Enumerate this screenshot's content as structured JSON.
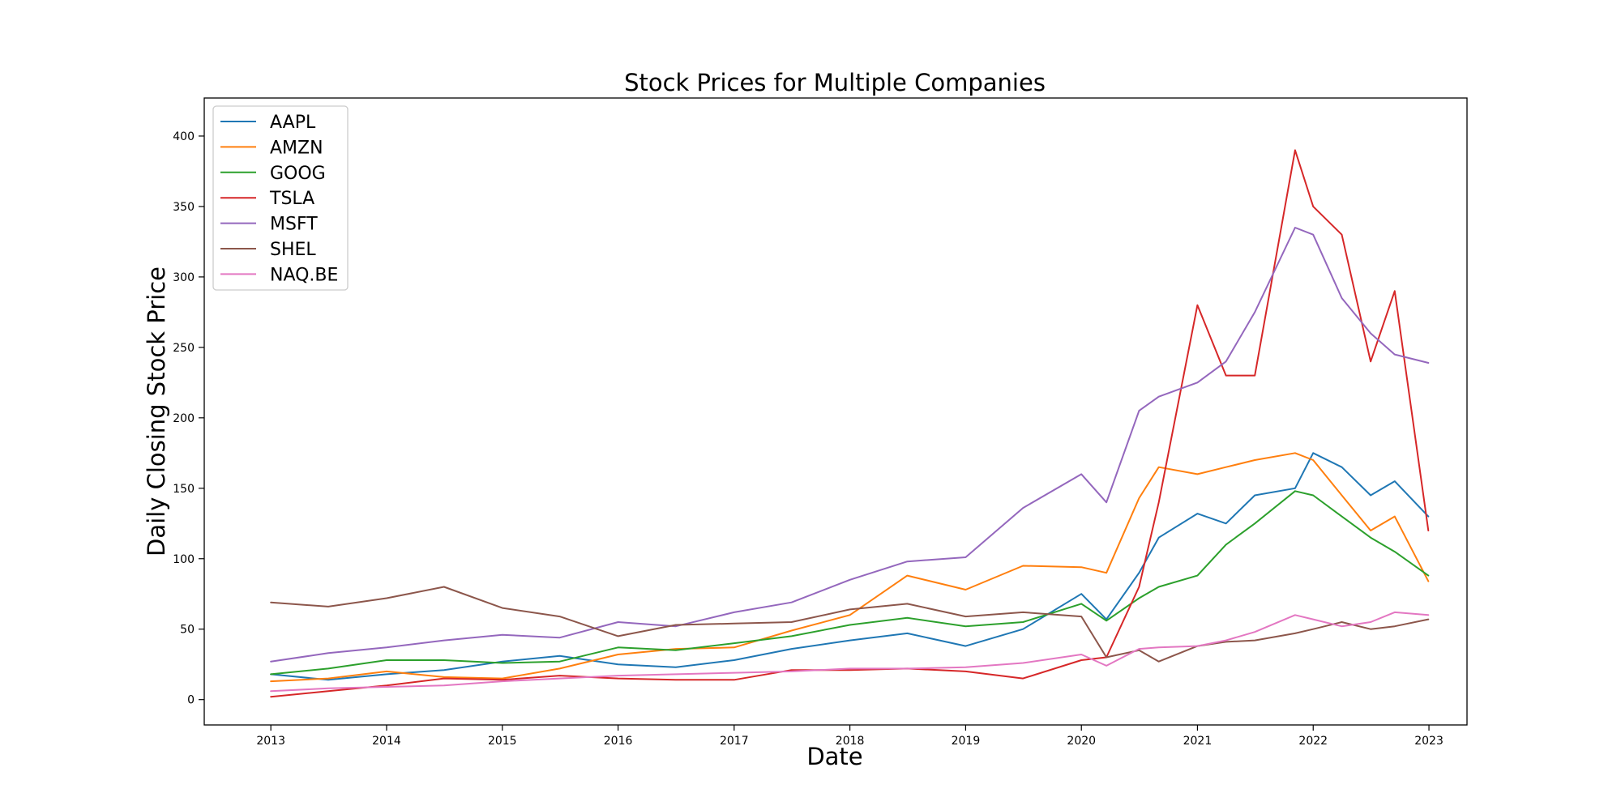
{
  "chart_data": {
    "type": "line",
    "title": "Stock Prices for Multiple Companies",
    "xlabel": "Date",
    "ylabel": "Daily Closing Stock Price",
    "xlim": [
      "2012-06-05",
      "2023-05-01"
    ],
    "ylim": [
      -18,
      427
    ],
    "x_ticks": [
      "2013",
      "2014",
      "2015",
      "2016",
      "2017",
      "2018",
      "2019",
      "2020",
      "2021",
      "2022",
      "2023"
    ],
    "y_ticks": [
      0,
      50,
      100,
      150,
      200,
      250,
      300,
      350,
      400
    ],
    "legend_position": "upper-left",
    "grid": false,
    "x": [
      "2013-01-01",
      "2013-07-01",
      "2014-01-01",
      "2014-07-01",
      "2015-01-01",
      "2015-07-01",
      "2016-01-01",
      "2016-07-01",
      "2017-01-01",
      "2017-07-01",
      "2018-01-01",
      "2018-07-01",
      "2019-01-01",
      "2019-07-01",
      "2020-01-01",
      "2020-03-20",
      "2020-07-01",
      "2020-09-01",
      "2021-01-01",
      "2021-04-01",
      "2021-07-01",
      "2021-11-05",
      "2022-01-01",
      "2022-04-01",
      "2022-07-01",
      "2022-09-15",
      "2022-12-30"
    ],
    "series": [
      {
        "name": "AAPL",
        "color": "#1f77b4",
        "values": [
          18,
          14,
          18,
          21,
          27,
          31,
          25,
          23,
          28,
          36,
          42,
          47,
          38,
          50,
          75,
          57,
          90,
          115,
          132,
          125,
          145,
          150,
          175,
          165,
          145,
          155,
          130
        ]
      },
      {
        "name": "AMZN",
        "color": "#ff7f0e",
        "values": [
          13,
          15,
          20,
          16,
          15,
          22,
          32,
          36,
          37,
          49,
          60,
          88,
          78,
          95,
          94,
          90,
          143,
          165,
          160,
          165,
          170,
          175,
          170,
          145,
          120,
          130,
          84
        ]
      },
      {
        "name": "GOOG",
        "color": "#2ca02c",
        "values": [
          18,
          22,
          28,
          28,
          26,
          27,
          37,
          35,
          40,
          45,
          53,
          58,
          52,
          55,
          68,
          56,
          72,
          80,
          88,
          110,
          125,
          148,
          145,
          130,
          115,
          105,
          88
        ]
      },
      {
        "name": "TSLA",
        "color": "#d62728",
        "values": [
          2,
          6,
          10,
          15,
          14,
          17,
          15,
          14,
          14,
          21,
          21,
          22,
          20,
          15,
          28,
          30,
          80,
          140,
          280,
          230,
          230,
          390,
          350,
          330,
          240,
          290,
          120
        ]
      },
      {
        "name": "MSFT",
        "color": "#9467bd",
        "values": [
          27,
          33,
          37,
          42,
          46,
          44,
          55,
          52,
          62,
          69,
          85,
          98,
          101,
          136,
          160,
          140,
          205,
          215,
          225,
          240,
          275,
          335,
          330,
          285,
          260,
          245,
          239
        ]
      },
      {
        "name": "SHEL",
        "color": "#8c564b",
        "values": [
          69,
          66,
          72,
          80,
          65,
          59,
          45,
          53,
          54,
          55,
          64,
          68,
          59,
          62,
          59,
          30,
          35,
          27,
          38,
          41,
          42,
          47,
          50,
          55,
          50,
          52,
          57
        ]
      },
      {
        "name": "NAQ.BE",
        "color": "#e377c2",
        "values": [
          6,
          8,
          9,
          10,
          13,
          15,
          17,
          18,
          19,
          20,
          22,
          22,
          23,
          26,
          32,
          24,
          36,
          37,
          38,
          42,
          48,
          60,
          57,
          52,
          55,
          62,
          60
        ]
      }
    ]
  }
}
